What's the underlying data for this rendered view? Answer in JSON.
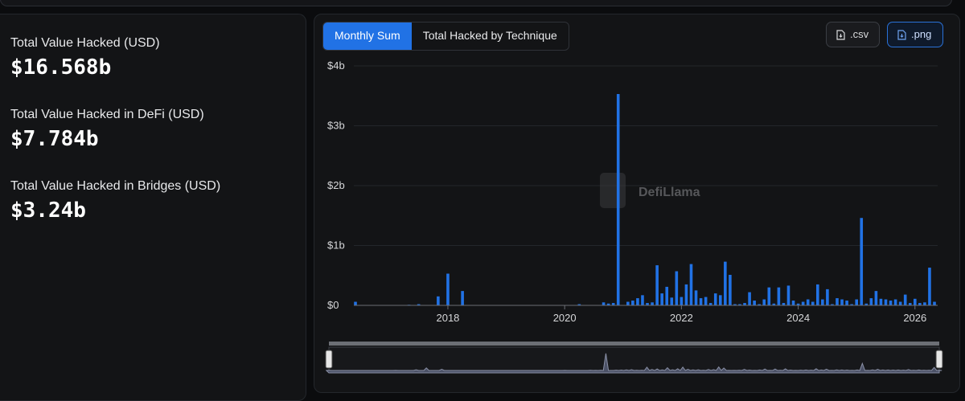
{
  "stats": [
    {
      "label": "Total Value Hacked (USD)",
      "value": "$16.568b"
    },
    {
      "label": "Total Value Hacked in DeFi (USD)",
      "value": "$7.784b"
    },
    {
      "label": "Total Value Hacked in Bridges (USD)",
      "value": "$3.24b"
    }
  ],
  "tabs": [
    {
      "label": "Monthly Sum",
      "active": true
    },
    {
      "label": "Total Hacked by Technique",
      "active": false
    }
  ],
  "buttons": {
    "csv_label": ".csv",
    "png_label": ".png"
  },
  "watermark": "DefiLlama",
  "colors": {
    "bar": "#2172e5",
    "panel": "#131416",
    "accent": "#2172e5"
  },
  "chart_data": {
    "type": "bar",
    "title": "",
    "xlabel": "",
    "ylabel": "",
    "y_unit": "USD billions",
    "ylim": [
      0,
      4
    ],
    "yticks": [
      "$0",
      "$1b",
      "$2b",
      "$3b",
      "$4b"
    ],
    "xticks": [
      "2018",
      "2020",
      "2022",
      "2024",
      "2026"
    ],
    "grid": true,
    "series": [
      {
        "values": [
          [
            "2016-06",
            0.06
          ],
          [
            "2017-05",
            0.01
          ],
          [
            "2017-07",
            0.02
          ],
          [
            "2017-11",
            0.15
          ],
          [
            "2018-01",
            0.53
          ],
          [
            "2018-04",
            0.24
          ],
          [
            "2020-04",
            0.02
          ],
          [
            "2020-09",
            0.05
          ],
          [
            "2020-10",
            0.03
          ],
          [
            "2020-11",
            0.04
          ],
          [
            "2020-12",
            3.53
          ],
          [
            "2021-02",
            0.06
          ],
          [
            "2021-03",
            0.08
          ],
          [
            "2021-04",
            0.12
          ],
          [
            "2021-05",
            0.17
          ],
          [
            "2021-06",
            0.04
          ],
          [
            "2021-07",
            0.05
          ],
          [
            "2021-08",
            0.67
          ],
          [
            "2021-09",
            0.2
          ],
          [
            "2021-10",
            0.31
          ],
          [
            "2021-11",
            0.13
          ],
          [
            "2021-12",
            0.57
          ],
          [
            "2022-01",
            0.14
          ],
          [
            "2022-02",
            0.35
          ],
          [
            "2022-03",
            0.69
          ],
          [
            "2022-04",
            0.25
          ],
          [
            "2022-05",
            0.12
          ],
          [
            "2022-06",
            0.14
          ],
          [
            "2022-07",
            0.04
          ],
          [
            "2022-08",
            0.2
          ],
          [
            "2022-09",
            0.17
          ],
          [
            "2022-10",
            0.73
          ],
          [
            "2022-11",
            0.51
          ],
          [
            "2022-12",
            0.02
          ],
          [
            "2023-01",
            0.02
          ],
          [
            "2023-02",
            0.04
          ],
          [
            "2023-03",
            0.22
          ],
          [
            "2023-04",
            0.08
          ],
          [
            "2023-05",
            0.02
          ],
          [
            "2023-06",
            0.1
          ],
          [
            "2023-07",
            0.3
          ],
          [
            "2023-08",
            0.03
          ],
          [
            "2023-09",
            0.3
          ],
          [
            "2023-10",
            0.04
          ],
          [
            "2023-11",
            0.33
          ],
          [
            "2023-12",
            0.08
          ],
          [
            "2024-01",
            0.03
          ],
          [
            "2024-02",
            0.06
          ],
          [
            "2024-03",
            0.1
          ],
          [
            "2024-04",
            0.06
          ],
          [
            "2024-05",
            0.35
          ],
          [
            "2024-06",
            0.1
          ],
          [
            "2024-07",
            0.27
          ],
          [
            "2024-08",
            0.02
          ],
          [
            "2024-09",
            0.12
          ],
          [
            "2024-10",
            0.1
          ],
          [
            "2024-11",
            0.08
          ],
          [
            "2024-12",
            0.02
          ],
          [
            "2025-01",
            0.1
          ],
          [
            "2025-02",
            1.46
          ],
          [
            "2025-03",
            0.03
          ],
          [
            "2025-04",
            0.12
          ],
          [
            "2025-05",
            0.24
          ],
          [
            "2025-06",
            0.11
          ],
          [
            "2025-07",
            0.1
          ],
          [
            "2025-08",
            0.08
          ],
          [
            "2025-09",
            0.1
          ],
          [
            "2025-10",
            0.06
          ],
          [
            "2025-11",
            0.18
          ],
          [
            "2025-12",
            0.04
          ],
          [
            "2026-01",
            0.11
          ],
          [
            "2026-02",
            0.04
          ],
          [
            "2026-03",
            0.05
          ],
          [
            "2026-04",
            0.63
          ],
          [
            "2026-05",
            0.06
          ]
        ]
      }
    ]
  }
}
